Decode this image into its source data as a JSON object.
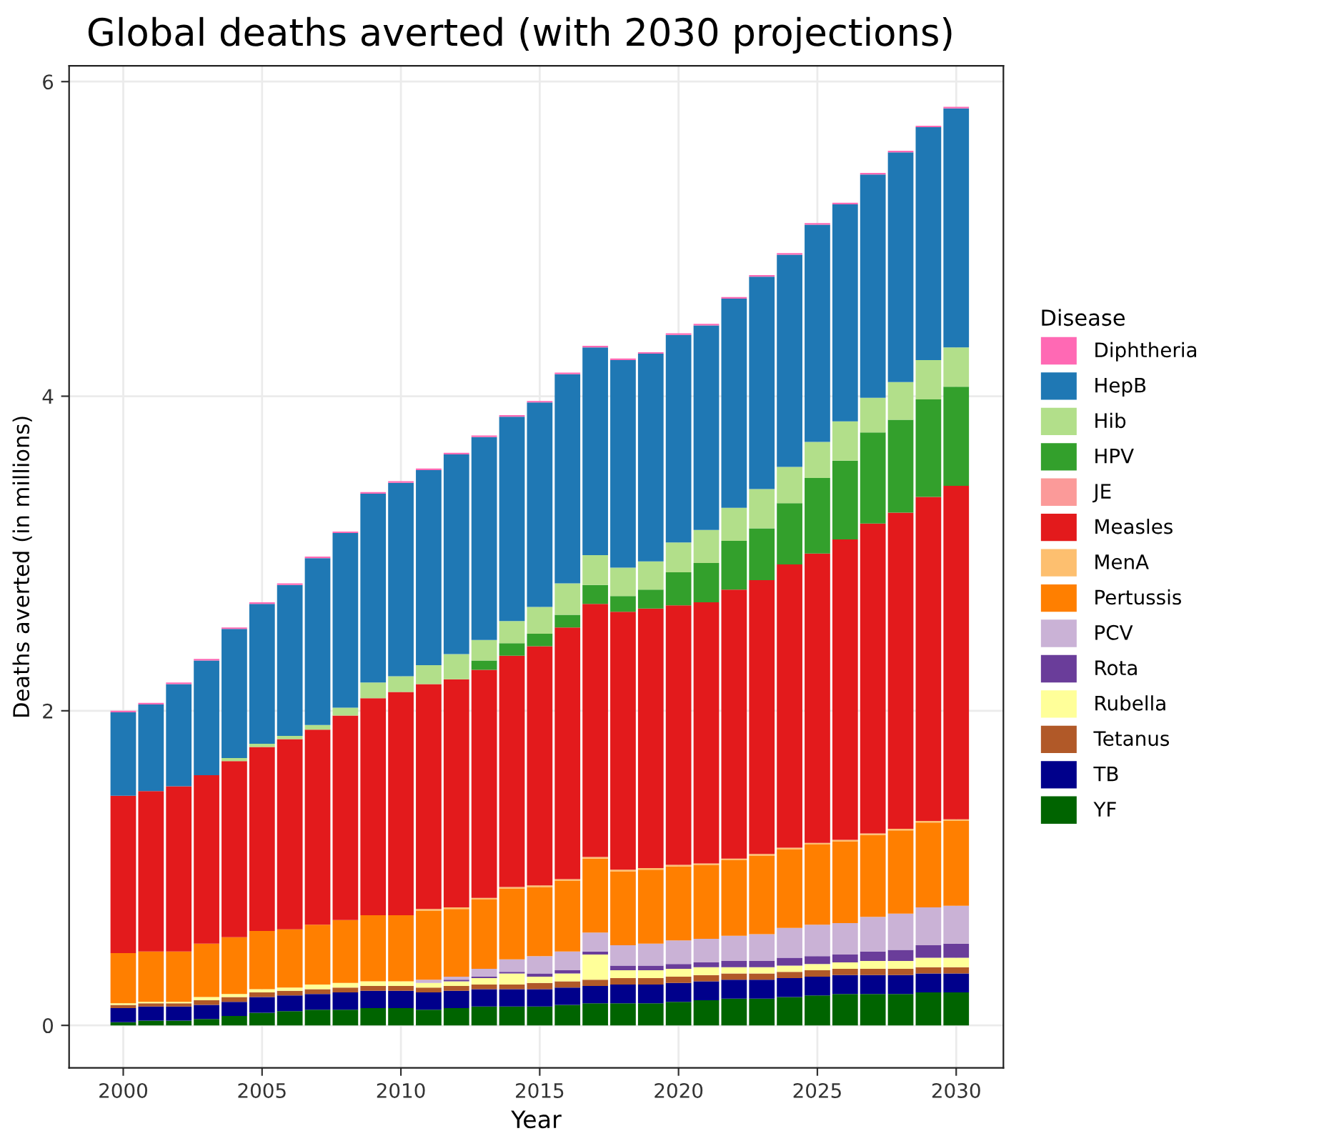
{
  "chart_data": {
    "type": "bar",
    "stacked": true,
    "title": "Global deaths averted (with 2030 projections)",
    "xlabel": "Year",
    "ylabel": "Deaths averted (in millions)",
    "legend_title": "Disease",
    "legend": "right",
    "grid": true,
    "x": [
      2000,
      2001,
      2002,
      2003,
      2004,
      2005,
      2006,
      2007,
      2008,
      2009,
      2010,
      2011,
      2012,
      2013,
      2014,
      2015,
      2016,
      2017,
      2018,
      2019,
      2020,
      2021,
      2022,
      2023,
      2024,
      2025,
      2026,
      2027,
      2028,
      2029,
      2030
    ],
    "xlim": [
      1998.05,
      2031.7
    ],
    "xticks": [
      2000,
      2005,
      2010,
      2015,
      2020,
      2025,
      2030
    ],
    "ylim": [
      -0.27,
      6.1
    ],
    "yticks": [
      0,
      2,
      4,
      6
    ],
    "series": [
      {
        "name": "YF",
        "color": "#006400",
        "values": [
          0.02,
          0.03,
          0.03,
          0.04,
          0.06,
          0.08,
          0.09,
          0.1,
          0.1,
          0.11,
          0.11,
          0.1,
          0.11,
          0.12,
          0.12,
          0.12,
          0.13,
          0.14,
          0.14,
          0.14,
          0.15,
          0.16,
          0.17,
          0.17,
          0.18,
          0.19,
          0.2,
          0.2,
          0.2,
          0.21,
          0.21
        ]
      },
      {
        "name": "TB",
        "color": "#00008b",
        "values": [
          0.09,
          0.09,
          0.09,
          0.09,
          0.09,
          0.1,
          0.1,
          0.1,
          0.11,
          0.11,
          0.11,
          0.11,
          0.11,
          0.11,
          0.11,
          0.11,
          0.11,
          0.11,
          0.12,
          0.12,
          0.12,
          0.12,
          0.12,
          0.12,
          0.12,
          0.12,
          0.12,
          0.12,
          0.12,
          0.12,
          0.12
        ]
      },
      {
        "name": "Tetanus",
        "color": "#b15928",
        "values": [
          0.02,
          0.02,
          0.02,
          0.03,
          0.03,
          0.03,
          0.03,
          0.03,
          0.03,
          0.03,
          0.03,
          0.03,
          0.03,
          0.03,
          0.03,
          0.04,
          0.04,
          0.04,
          0.04,
          0.04,
          0.04,
          0.04,
          0.04,
          0.04,
          0.04,
          0.04,
          0.04,
          0.04,
          0.04,
          0.04,
          0.04
        ]
      },
      {
        "name": "Rubella",
        "color": "#ffff99",
        "values": [
          0.01,
          0.01,
          0.01,
          0.02,
          0.02,
          0.02,
          0.02,
          0.03,
          0.03,
          0.03,
          0.03,
          0.03,
          0.03,
          0.04,
          0.07,
          0.04,
          0.05,
          0.16,
          0.05,
          0.05,
          0.05,
          0.05,
          0.04,
          0.04,
          0.04,
          0.04,
          0.04,
          0.05,
          0.05,
          0.06,
          0.06
        ]
      },
      {
        "name": "Rota",
        "color": "#6a3d9a",
        "values": [
          0,
          0,
          0,
          0,
          0,
          0,
          0,
          0,
          0,
          0,
          0,
          0,
          0.01,
          0.01,
          0.01,
          0.02,
          0.02,
          0.02,
          0.03,
          0.03,
          0.03,
          0.03,
          0.04,
          0.04,
          0.05,
          0.05,
          0.05,
          0.06,
          0.07,
          0.08,
          0.09
        ]
      },
      {
        "name": "PCV",
        "color": "#cab2d6",
        "values": [
          0,
          0,
          0,
          0,
          0,
          0,
          0,
          0,
          0,
          0,
          0,
          0.02,
          0.02,
          0.05,
          0.08,
          0.11,
          0.12,
          0.12,
          0.13,
          0.14,
          0.15,
          0.15,
          0.16,
          0.17,
          0.19,
          0.2,
          0.2,
          0.22,
          0.23,
          0.24,
          0.24
        ]
      },
      {
        "name": "Pertussis",
        "color": "#ff7f00",
        "values": [
          0.32,
          0.32,
          0.32,
          0.34,
          0.36,
          0.37,
          0.37,
          0.38,
          0.4,
          0.42,
          0.42,
          0.44,
          0.43,
          0.44,
          0.45,
          0.44,
          0.45,
          0.47,
          0.47,
          0.47,
          0.47,
          0.47,
          0.48,
          0.5,
          0.5,
          0.51,
          0.52,
          0.52,
          0.53,
          0.54,
          0.54
        ]
      },
      {
        "name": "MenA",
        "color": "#fdbf6f",
        "values": [
          0,
          0,
          0,
          0,
          0,
          0,
          0,
          0,
          0,
          0,
          0,
          0.01,
          0.01,
          0.01,
          0.01,
          0.01,
          0.01,
          0.01,
          0.01,
          0.01,
          0.01,
          0.01,
          0.01,
          0.01,
          0.01,
          0.01,
          0.01,
          0.01,
          0.01,
          0.01,
          0.01
        ]
      },
      {
        "name": "Measles",
        "color": "#e31a1c",
        "values": [
          1.0,
          1.02,
          1.05,
          1.07,
          1.12,
          1.17,
          1.21,
          1.24,
          1.3,
          1.38,
          1.42,
          1.43,
          1.45,
          1.45,
          1.47,
          1.52,
          1.6,
          1.61,
          1.64,
          1.65,
          1.65,
          1.66,
          1.71,
          1.74,
          1.8,
          1.84,
          1.91,
          1.97,
          2.01,
          2.06,
          2.12
        ]
      },
      {
        "name": "JE",
        "color": "#fb9a99",
        "values": [
          0,
          0,
          0,
          0,
          0,
          0,
          0,
          0,
          0,
          0,
          0,
          0,
          0,
          0,
          0,
          0,
          0,
          0,
          0,
          0,
          0,
          0,
          0,
          0,
          0,
          0,
          0,
          0,
          0,
          0,
          0
        ]
      },
      {
        "name": "HPV",
        "color": "#33a02c",
        "values": [
          0,
          0,
          0,
          0,
          0,
          0,
          0,
          0,
          0,
          0,
          0,
          0,
          0,
          0.06,
          0.08,
          0.08,
          0.08,
          0.12,
          0.1,
          0.12,
          0.21,
          0.25,
          0.31,
          0.33,
          0.39,
          0.48,
          0.5,
          0.58,
          0.59,
          0.62,
          0.63
        ]
      },
      {
        "name": "Hib",
        "color": "#b2df8a",
        "values": [
          0,
          0,
          0,
          0,
          0.02,
          0.02,
          0.02,
          0.03,
          0.05,
          0.1,
          0.1,
          0.12,
          0.16,
          0.13,
          0.14,
          0.17,
          0.2,
          0.19,
          0.18,
          0.18,
          0.19,
          0.21,
          0.21,
          0.25,
          0.23,
          0.23,
          0.25,
          0.22,
          0.24,
          0.25,
          0.25
        ]
      },
      {
        "name": "HepB",
        "color": "#1f78b4",
        "values": [
          0.53,
          0.55,
          0.65,
          0.73,
          0.82,
          0.89,
          0.96,
          1.06,
          1.11,
          1.2,
          1.23,
          1.24,
          1.27,
          1.29,
          1.3,
          1.3,
          1.33,
          1.32,
          1.32,
          1.32,
          1.32,
          1.3,
          1.33,
          1.35,
          1.35,
          1.38,
          1.38,
          1.42,
          1.46,
          1.48,
          1.52
        ]
      },
      {
        "name": "Diphtheria",
        "color": "#ff69b4",
        "values": [
          0.01,
          0.01,
          0.01,
          0.01,
          0.01,
          0.01,
          0.01,
          0.01,
          0.01,
          0.01,
          0.01,
          0.01,
          0.01,
          0.01,
          0.01,
          0.01,
          0.01,
          0.01,
          0.01,
          0.01,
          0.01,
          0.01,
          0.01,
          0.01,
          0.01,
          0.01,
          0.01,
          0.01,
          0.01,
          0.01,
          0.01
        ]
      }
    ]
  }
}
